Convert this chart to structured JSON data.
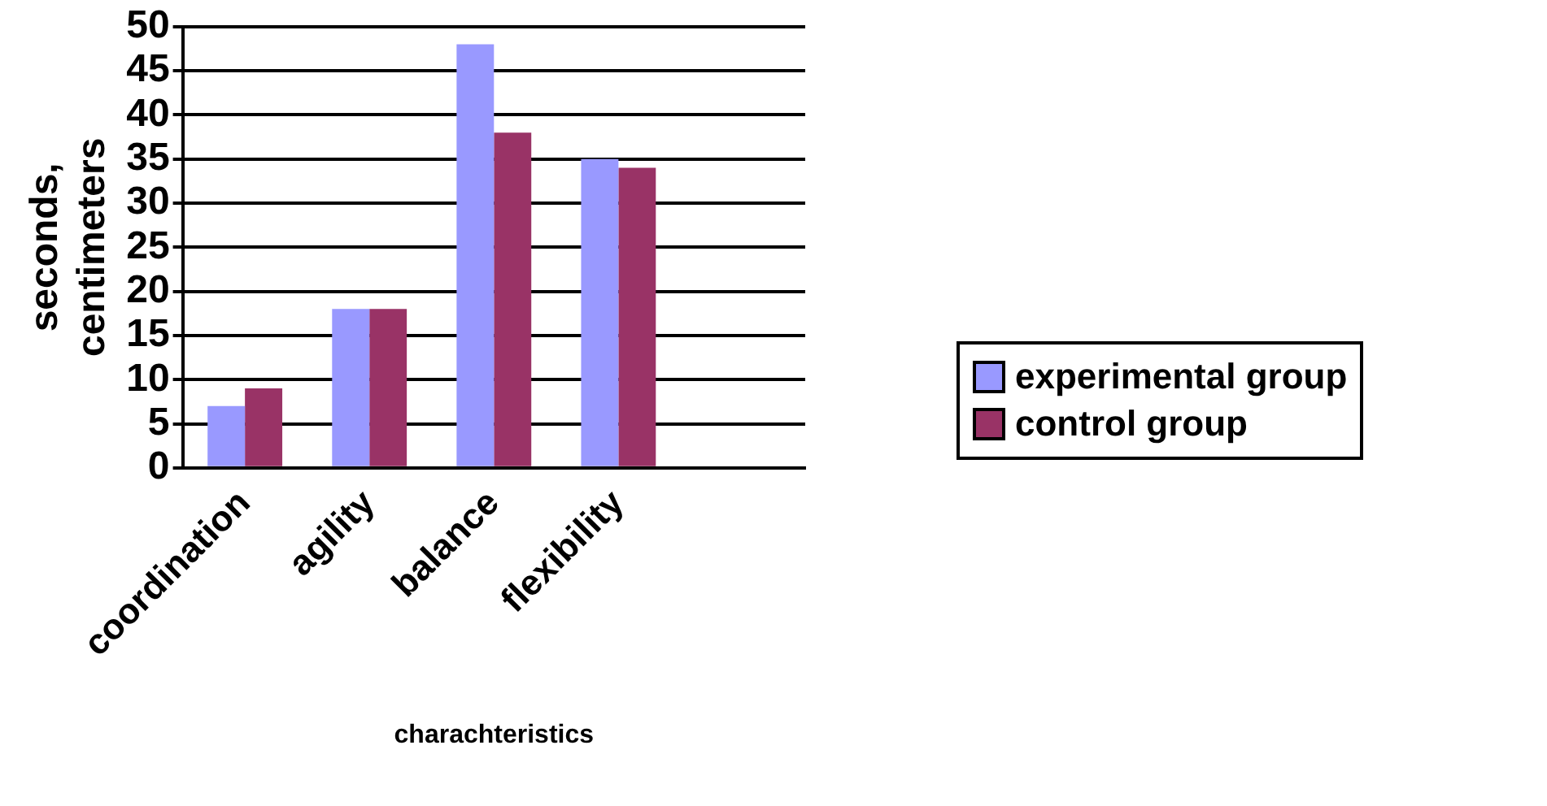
{
  "chart_data": {
    "type": "bar",
    "xlabel": "charachteristics",
    "ylabel": "seconds, centimeters",
    "categories": [
      "coordination",
      "agility",
      "balance",
      "flexibility",
      null
    ],
    "series": [
      {
        "name": "experimental group",
        "color": "#9999ff",
        "values": [
          7,
          18,
          48,
          35,
          null
        ]
      },
      {
        "name": "control group",
        "color": "#993366",
        "values": [
          9,
          18,
          38,
          34,
          null
        ]
      }
    ],
    "ylim": [
      0,
      50
    ],
    "yticks": [
      0,
      5,
      10,
      15,
      20,
      25,
      30,
      35,
      40,
      45,
      50
    ],
    "grid": "y",
    "legend": "right"
  }
}
